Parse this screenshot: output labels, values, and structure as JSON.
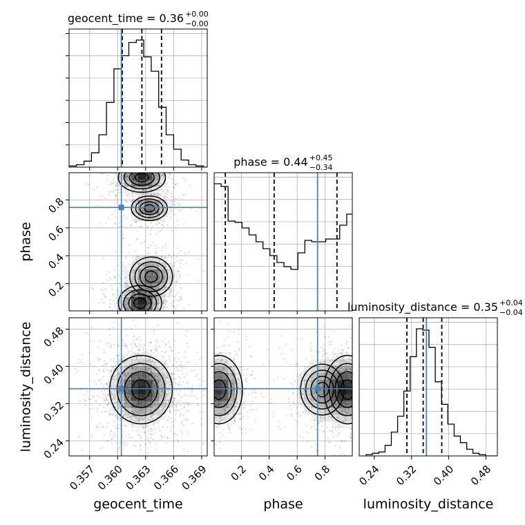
{
  "chart_data": {
    "type": "corner",
    "parameters": [
      "geocent_time",
      "phase",
      "luminosity_distance"
    ],
    "colors": {
      "truth": "#4682b4",
      "hist": "#000000",
      "grid": "#b0b0b0",
      "density": "#000000",
      "points": "#000000"
    },
    "grid": true,
    "titles": [
      {
        "param": "geocent_time",
        "main": "geocent_time = 0.36",
        "sup": "+0.00",
        "sub": "−0.00"
      },
      {
        "param": "phase",
        "main": "phase = 0.44",
        "sup": "+0.45",
        "sub": "−0.34"
      },
      {
        "param": "luminosity_distance",
        "main": "luminosity_distance = 0.35",
        "sup": "+0.04",
        "sub": "−0.04"
      }
    ],
    "axis_labels": {
      "x": [
        "geocent_time",
        "phase",
        "luminosity_distance"
      ],
      "y": [
        "phase",
        "luminosity_distance"
      ]
    },
    "ticks": {
      "geocent_time": {
        "values": [
          0.357,
          0.36,
          0.363,
          0.366,
          0.369
        ],
        "labels": [
          "0.357",
          "0.360",
          "0.363",
          "0.366",
          "0.369"
        ]
      },
      "phase": {
        "values": [
          0.2,
          0.4,
          0.6,
          0.8
        ],
        "labels": [
          "0.2",
          "0.4",
          "0.6",
          "0.8"
        ]
      },
      "luminosity_distance": {
        "values": [
          0.24,
          0.32,
          0.4,
          0.48
        ],
        "labels": [
          "0.24",
          "0.32",
          "0.40",
          "0.48"
        ]
      }
    },
    "ranges": {
      "geocent_time": [
        0.3548,
        0.3696
      ],
      "phase": [
        0.005,
        0.995
      ],
      "luminosity_distance": [
        0.2075,
        0.5045
      ]
    },
    "truths": {
      "geocent_time": 0.3604,
      "phase": 0.746,
      "luminosity_distance": 0.352
    },
    "quantiles": {
      "geocent_time": [
        0.3605,
        0.3626,
        0.3647
      ],
      "phase": [
        0.085,
        0.435,
        0.885
      ],
      "luminosity_distance": [
        0.31,
        0.345,
        0.385
      ]
    },
    "histograms": {
      "geocent_time": {
        "edges": [
          0.3548,
          0.3556,
          0.3564,
          0.3572,
          0.358,
          0.3588,
          0.3596,
          0.3604,
          0.3612,
          0.362,
          0.3628,
          0.3636,
          0.3644,
          0.3652,
          0.366,
          0.3668,
          0.3676,
          0.3684,
          0.3692,
          0.37
        ],
        "counts": [
          1,
          2,
          5,
          12,
          27,
          54,
          82,
          93,
          104,
          106,
          92,
          80,
          50,
          27,
          15,
          6,
          2,
          1,
          0
        ]
      },
      "phase": {
        "edges": [
          0.005,
          0.055,
          0.105,
          0.155,
          0.205,
          0.255,
          0.305,
          0.355,
          0.405,
          0.455,
          0.505,
          0.555,
          0.605,
          0.655,
          0.705,
          0.755,
          0.805,
          0.855,
          0.905,
          0.955,
          0.995
        ],
        "counts": [
          92,
          90,
          65,
          64,
          60,
          55,
          50,
          45,
          40,
          35,
          32,
          30,
          42,
          51,
          50,
          50,
          52,
          52,
          62,
          70
        ]
      },
      "luminosity_distance": {
        "edges": [
          0.2225,
          0.236,
          0.2495,
          0.263,
          0.2765,
          0.29,
          0.3035,
          0.317,
          0.3305,
          0.344,
          0.3575,
          0.371,
          0.3845,
          0.398,
          0.4115,
          0.425,
          0.4385,
          0.452,
          0.4655,
          0.479,
          0.4925,
          0.5045
        ],
        "counts": [
          1,
          2,
          3,
          8,
          18,
          30,
          49,
          75,
          96,
          95,
          82,
          56,
          39,
          24,
          15,
          10,
          5,
          2,
          1,
          0,
          0
        ]
      }
    },
    "density": {
      "phase_vs_geocent_time": [
        {
          "x": 0.3626,
          "y": 0.96,
          "sx": 0.0012,
          "sy": 0.05,
          "w": 1
        },
        {
          "x": 0.3634,
          "y": 0.74,
          "sx": 0.0011,
          "sy": 0.05,
          "w": 0.7
        },
        {
          "x": 0.3624,
          "y": 0.06,
          "sx": 0.0011,
          "sy": 0.06,
          "w": 1
        },
        {
          "x": 0.3636,
          "y": 0.25,
          "sx": 0.0013,
          "sy": 0.08,
          "w": 0.7
        }
      ],
      "luminosity_distance_vs_geocent_time": [
        {
          "x": 0.3625,
          "y": 0.35,
          "sx": 0.0016,
          "sy": 0.035,
          "w": 1
        }
      ],
      "luminosity_distance_vs_phase": [
        {
          "x": 0.04,
          "y": 0.35,
          "sx": 0.08,
          "sy": 0.035,
          "w": 1
        },
        {
          "x": 0.96,
          "y": 0.35,
          "sx": 0.08,
          "sy": 0.035,
          "w": 1
        },
        {
          "x": 0.78,
          "y": 0.35,
          "sx": 0.1,
          "sy": 0.035,
          "w": 0.55
        }
      ]
    }
  }
}
